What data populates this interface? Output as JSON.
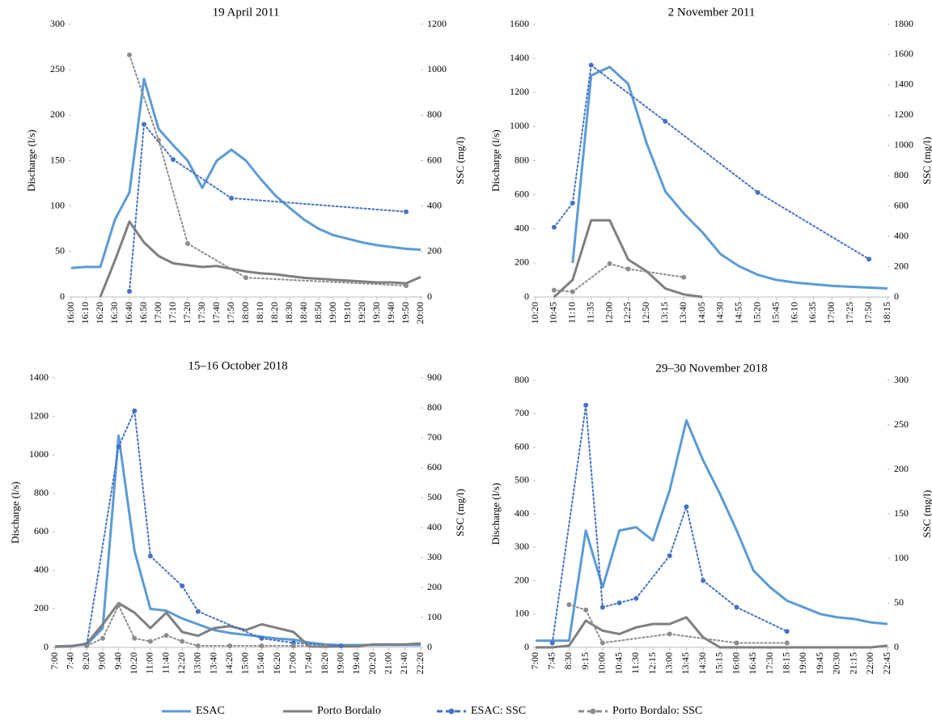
{
  "chart_data": [
    {
      "type": "line",
      "title": "19 April 2011",
      "y_label": "Discharge (l/s)",
      "y2_label": "SSC (mg/l)",
      "categories": [
        "16:00",
        "16:10",
        "16:20",
        "16:30",
        "16:40",
        "16:50",
        "17:00",
        "17:10",
        "17:20",
        "17:30",
        "17:40",
        "17:50",
        "18:00",
        "18:10",
        "18:20",
        "18:30",
        "18:40",
        "18:50",
        "19:00",
        "19:10",
        "19:20",
        "19:30",
        "19:40",
        "19:50",
        "20:00"
      ],
      "ylim": [
        0,
        300
      ],
      "yticks": [
        0,
        50,
        100,
        150,
        200,
        250,
        300
      ],
      "y2lim": [
        0,
        1200
      ],
      "y2ticks": [
        0,
        200,
        400,
        600,
        800,
        1000,
        1200
      ],
      "series": [
        {
          "name": "ESAC",
          "color": "#5b9bd5",
          "dash": "solid",
          "values": [
            32,
            33,
            33,
            85,
            115,
            240,
            185,
            167,
            150,
            120,
            150,
            162,
            150,
            130,
            112,
            98,
            85,
            75,
            68,
            64,
            60,
            57,
            55,
            53,
            52
          ]
        },
        {
          "name": "Porto Bordalo",
          "color": "#7f7f7f",
          "dash": "solid",
          "values": [
            null,
            null,
            0,
            40,
            83,
            60,
            45,
            37,
            35,
            33,
            34,
            31,
            28,
            26,
            25,
            23,
            21,
            20,
            19,
            18,
            17,
            16,
            16,
            15,
            22
          ]
        },
        {
          "name": "ESAC: SSC",
          "color": "#4472c4",
          "dash": "dotted",
          "marker": "circle",
          "axis": "y2",
          "values": [
            null,
            null,
            null,
            null,
            25,
            760,
            null,
            605,
            null,
            null,
            null,
            435,
            null,
            null,
            null,
            null,
            null,
            null,
            null,
            null,
            null,
            null,
            null,
            375,
            null
          ]
        },
        {
          "name": "Porto Bordalo: SSC",
          "color": "#8c8c8c",
          "dash": "dotted",
          "marker": "circle",
          "axis": "y2",
          "values": [
            null,
            null,
            null,
            null,
            1065,
            null,
            690,
            null,
            235,
            null,
            null,
            null,
            85,
            null,
            null,
            null,
            null,
            null,
            null,
            null,
            null,
            null,
            null,
            50,
            null
          ]
        }
      ]
    },
    {
      "type": "line",
      "title": "2 November 2011",
      "y_label": "Discharge (l/s)",
      "y2_label": "SSC (mg/l)",
      "categories": [
        "10:20",
        "10:45",
        "11:10",
        "11:35",
        "12:00",
        "12:25",
        "12:50",
        "13:15",
        "13:40",
        "14:05",
        "14:30",
        "14:55",
        "15:20",
        "15:45",
        "16:10",
        "16:35",
        "17:00",
        "17:25",
        "17:50",
        "18:15"
      ],
      "ylim": [
        0,
        1600
      ],
      "yticks": [
        0,
        200,
        400,
        600,
        800,
        1000,
        1200,
        1400,
        1600
      ],
      "y2lim": [
        0,
        1800
      ],
      "y2ticks": [
        0,
        200,
        400,
        600,
        800,
        1000,
        1200,
        1400,
        1600,
        1800
      ],
      "series": [
        {
          "name": "ESAC",
          "color": "#5b9bd5",
          "dash": "solid",
          "values": [
            null,
            null,
            200,
            1300,
            1350,
            1250,
            900,
            620,
            490,
            380,
            250,
            180,
            130,
            100,
            85,
            75,
            65,
            60,
            55,
            50
          ]
        },
        {
          "name": "Porto Bordalo",
          "color": "#7f7f7f",
          "dash": "solid",
          "values": [
            null,
            0,
            100,
            450,
            450,
            220,
            150,
            50,
            15,
            0,
            null,
            null,
            null,
            null,
            null,
            null,
            null,
            null,
            null,
            null
          ]
        },
        {
          "name": "ESAC: SSC",
          "color": "#4472c4",
          "dash": "dotted",
          "marker": "circle",
          "axis": "y2",
          "values": [
            null,
            460,
            620,
            1530,
            null,
            null,
            null,
            1160,
            null,
            null,
            null,
            null,
            690,
            null,
            null,
            null,
            null,
            null,
            250,
            null
          ]
        },
        {
          "name": "Porto Bordalo: SSC",
          "color": "#8c8c8c",
          "dash": "dotted",
          "marker": "circle",
          "axis": "y2",
          "values": [
            null,
            45,
            35,
            null,
            220,
            185,
            null,
            null,
            130,
            null,
            null,
            null,
            null,
            null,
            null,
            null,
            null,
            null,
            null,
            null
          ]
        }
      ]
    },
    {
      "type": "line",
      "title": "15–16 October 2018",
      "y_label": "Discharge (l/s)",
      "y2_label": "SSC (mg/l)",
      "categories": [
        "7:00",
        "7:40",
        "8:20",
        "9:00",
        "9:40",
        "10:20",
        "11:00",
        "11:40",
        "12:20",
        "13:00",
        "13:40",
        "14:20",
        "15:00",
        "15:40",
        "16:20",
        "17:00",
        "17:40",
        "18:20",
        "19:00",
        "19:40",
        "20:20",
        "21:00",
        "21:40",
        "22:20"
      ],
      "ylim": [
        0,
        1400
      ],
      "yticks": [
        0,
        200,
        400,
        600,
        800,
        1000,
        1200,
        1400
      ],
      "y2lim": [
        0,
        900
      ],
      "y2ticks": [
        0,
        100,
        200,
        300,
        400,
        500,
        600,
        700,
        800,
        900
      ],
      "series": [
        {
          "name": "ESAC",
          "color": "#5b9bd5",
          "dash": "solid",
          "values": [
            5,
            8,
            15,
            100,
            1100,
            500,
            200,
            190,
            150,
            120,
            90,
            75,
            65,
            55,
            45,
            40,
            25,
            15,
            12,
            12,
            12,
            12,
            12,
            12
          ]
        },
        {
          "name": "Porto Bordalo",
          "color": "#7f7f7f",
          "dash": "solid",
          "values": [
            3,
            5,
            20,
            120,
            230,
            180,
            100,
            180,
            80,
            60,
            100,
            110,
            90,
            120,
            100,
            80,
            5,
            3,
            5,
            5,
            15,
            15,
            15,
            20
          ]
        },
        {
          "name": "ESAC: SSC",
          "color": "#4472c4",
          "dash": "dotted",
          "marker": "circle",
          "axis": "y2",
          "values": [
            null,
            null,
            10,
            null,
            670,
            790,
            305,
            null,
            205,
            120,
            null,
            null,
            null,
            30,
            null,
            15,
            null,
            null,
            5,
            null,
            null,
            null,
            null,
            null
          ]
        },
        {
          "name": "Porto Bordalo: SSC",
          "color": "#8c8c8c",
          "dash": "dotted",
          "marker": "circle",
          "axis": "y2",
          "values": [
            null,
            null,
            5,
            30,
            140,
            30,
            20,
            40,
            20,
            5,
            null,
            5,
            null,
            5,
            null,
            5,
            null,
            5,
            null,
            null,
            null,
            null,
            null,
            null
          ]
        }
      ]
    },
    {
      "type": "line",
      "title": "29–30 November 2018",
      "y_label": "Discharge (l/s)",
      "y2_label": "SSC (mg/l)",
      "categories": [
        "7:00",
        "7:45",
        "8:30",
        "9:15",
        "10:00",
        "10:45",
        "11:30",
        "12:15",
        "13:00",
        "13:45",
        "14:30",
        "15:15",
        "16:00",
        "16:45",
        "17:30",
        "18:15",
        "19:00",
        "19:45",
        "20:30",
        "21:15",
        "22:00",
        "22:45"
      ],
      "ylim": [
        0,
        800
      ],
      "yticks": [
        0,
        100,
        200,
        300,
        400,
        500,
        600,
        700,
        800
      ],
      "y2lim": [
        0,
        300
      ],
      "y2ticks": [
        0,
        50,
        100,
        150,
        200,
        250,
        300
      ],
      "series": [
        {
          "name": "ESAC",
          "color": "#5b9bd5",
          "dash": "solid",
          "values": [
            20,
            20,
            20,
            350,
            180,
            350,
            360,
            320,
            470,
            680,
            560,
            460,
            350,
            230,
            180,
            140,
            120,
            100,
            90,
            85,
            75,
            70
          ]
        },
        {
          "name": "Porto Bordalo",
          "color": "#7f7f7f",
          "dash": "solid",
          "values": [
            0,
            0,
            5,
            80,
            50,
            40,
            60,
            70,
            70,
            90,
            30,
            0,
            0,
            0,
            0,
            0,
            0,
            0,
            0,
            0,
            0,
            5
          ]
        },
        {
          "name": "ESAC: SSC",
          "color": "#4472c4",
          "dash": "dotted",
          "marker": "circle",
          "axis": "y2",
          "values": [
            null,
            5,
            null,
            272,
            45,
            50,
            55,
            null,
            103,
            158,
            75,
            null,
            45,
            null,
            null,
            18,
            null,
            null,
            null,
            null,
            null,
            null
          ]
        },
        {
          "name": "Porto Bordalo: SSC",
          "color": "#8c8c8c",
          "dash": "dotted",
          "marker": "circle",
          "axis": "y2",
          "values": [
            null,
            null,
            48,
            42,
            5,
            null,
            null,
            null,
            15,
            null,
            null,
            null,
            5,
            null,
            null,
            5,
            null,
            null,
            null,
            null,
            null,
            null
          ]
        }
      ]
    }
  ]
}
